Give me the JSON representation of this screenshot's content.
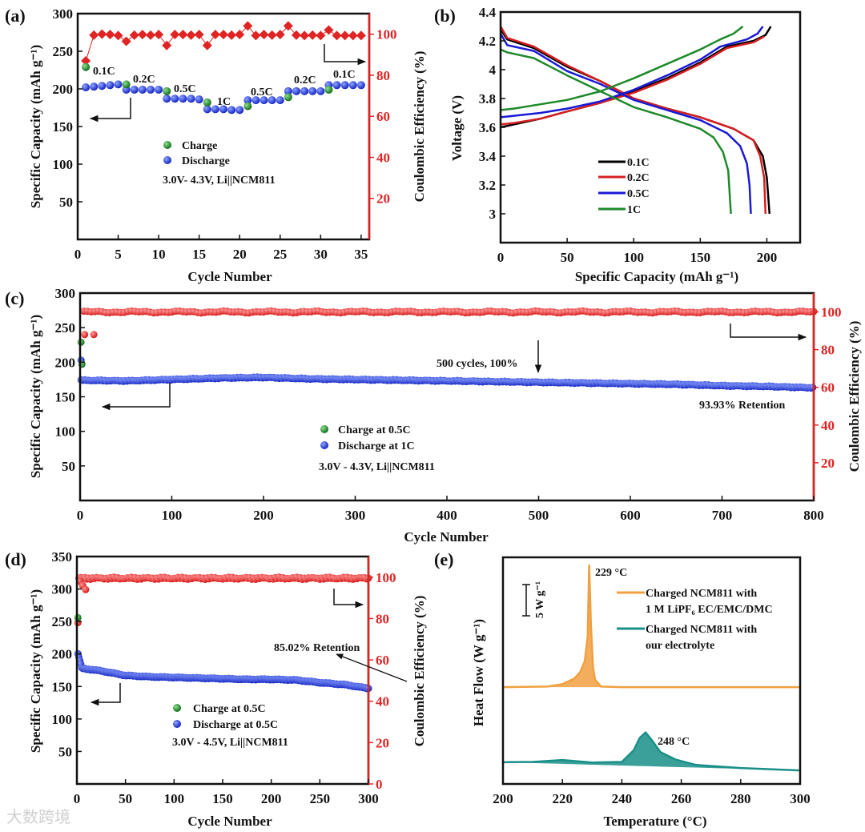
{
  "watermark": "大数跨境",
  "colors": {
    "charge": "#1f8a2a",
    "discharge": "#1a2fd0",
    "ce": "#e02424",
    "c01": "#000000",
    "c02": "#d62020",
    "c05": "#1a1ad6",
    "c1": "#1e8a2a",
    "orange": "#f0a040",
    "teal": "#1a8f88"
  },
  "chart_data": [
    {
      "panel": "(a)",
      "type": "scatter",
      "xlabel": "Cycle Number",
      "ylabel": "Specific Capacity (mAh g⁻¹)",
      "y2label": "Coulombic Efficiency (%)",
      "xlim": [
        0,
        36
      ],
      "ylim": [
        0,
        300
      ],
      "y2lim": [
        0,
        110
      ],
      "xticks": [
        0,
        5,
        10,
        15,
        20,
        25,
        30,
        35
      ],
      "yticks": [
        50,
        100,
        150,
        200,
        250,
        300
      ],
      "y2ticks": [
        20,
        40,
        60,
        80,
        100
      ],
      "legend": [
        "Charge",
        "Discharge"
      ],
      "condition": "3.0V- 4.3V, Li||NCM811",
      "rate_labels": [
        "0.1C",
        "0.2C",
        "0.5C",
        "1C",
        "0.5C",
        "0.2C",
        "0.1C"
      ],
      "charge": {
        "x": [
          1,
          6,
          11,
          16,
          21,
          26,
          31
        ],
        "y": [
          229,
          206,
          197,
          182,
          177,
          189,
          199
        ]
      },
      "discharge": {
        "x": [
          1,
          2,
          3,
          4,
          5,
          6,
          7,
          8,
          9,
          10,
          11,
          12,
          13,
          14,
          15,
          16,
          17,
          18,
          19,
          20,
          21,
          22,
          23,
          24,
          25,
          26,
          27,
          28,
          29,
          30,
          31,
          32,
          33,
          34,
          35
        ],
        "y": [
          202,
          203,
          204,
          205,
          206,
          199,
          199,
          199,
          199,
          199,
          187,
          187,
          187,
          187,
          186,
          173,
          173,
          173,
          172,
          172,
          185,
          185,
          185,
          185,
          185,
          197,
          197,
          197,
          197,
          197,
          205,
          205,
          205,
          205,
          205
        ]
      },
      "coulombic_efficiency": {
        "x": [
          1,
          2,
          3,
          4,
          5,
          6,
          7,
          8,
          9,
          10,
          11,
          12,
          13,
          14,
          15,
          16,
          17,
          18,
          19,
          20,
          21,
          22,
          23,
          24,
          25,
          26,
          27,
          28,
          29,
          30,
          31,
          32,
          33,
          34,
          35
        ],
        "y": [
          87,
          99.5,
          100,
          99.8,
          99.3,
          96.5,
          99.5,
          99.8,
          99.5,
          99.8,
          94.5,
          99.8,
          99.8,
          99.5,
          99.8,
          94.5,
          99.8,
          99.8,
          99.5,
          99.8,
          104,
          99.3,
          99.8,
          99.5,
          99.8,
          104,
          99.5,
          99.3,
          99.5,
          99.3,
          102,
          99.3,
          99.3,
          99.3,
          99.3
        ]
      }
    },
    {
      "panel": "(b)",
      "type": "line",
      "xlabel": "Specific Capacity (mAh g⁻¹)",
      "ylabel": "Voltage (V)",
      "xlim": [
        0,
        225
      ],
      "ylim": [
        2.8,
        4.4
      ],
      "xticks": [
        0,
        50,
        100,
        150,
        200
      ],
      "yticks": [
        3.0,
        3.2,
        3.4,
        3.6,
        3.8,
        4.0,
        4.2,
        4.4
      ],
      "legend_placement": "center-bottom",
      "series": [
        {
          "name": "0.1C",
          "color_key": "c01",
          "charge": [
            [
              0,
              3.6
            ],
            [
              10,
              3.62
            ],
            [
              30,
              3.66
            ],
            [
              50,
              3.71
            ],
            [
              75,
              3.77
            ],
            [
              100,
              3.85
            ],
            [
              125,
              3.94
            ],
            [
              150,
              4.05
            ],
            [
              170,
              4.16
            ],
            [
              190,
              4.2
            ],
            [
              199,
              4.24
            ],
            [
              203,
              4.3
            ]
          ],
          "discharge": [
            [
              0,
              4.28
            ],
            [
              5,
              4.21
            ],
            [
              25,
              4.15
            ],
            [
              50,
              4.02
            ],
            [
              75,
              3.92
            ],
            [
              100,
              3.8
            ],
            [
              125,
              3.73
            ],
            [
              150,
              3.67
            ],
            [
              175,
              3.59
            ],
            [
              190,
              3.51
            ],
            [
              197,
              3.4
            ],
            [
              200,
              3.25
            ],
            [
              202,
              3.0
            ]
          ]
        },
        {
          "name": "0.2C",
          "color_key": "c02",
          "charge": [
            [
              0,
              3.62
            ],
            [
              10,
              3.63
            ],
            [
              30,
              3.66
            ],
            [
              50,
              3.71
            ],
            [
              75,
              3.77
            ],
            [
              100,
              3.84
            ],
            [
              125,
              3.93
            ],
            [
              150,
              4.04
            ],
            [
              170,
              4.15
            ],
            [
              190,
              4.19
            ],
            [
              198,
              4.23
            ]
          ],
          "discharge": [
            [
              0,
              4.3
            ],
            [
              5,
              4.22
            ],
            [
              25,
              4.16
            ],
            [
              50,
              4.03
            ],
            [
              75,
              3.92
            ],
            [
              100,
              3.8
            ],
            [
              125,
              3.73
            ],
            [
              150,
              3.67
            ],
            [
              175,
              3.59
            ],
            [
              190,
              3.51
            ],
            [
              195,
              3.4
            ],
            [
              198,
              3.25
            ],
            [
              199,
              3.0
            ]
          ]
        },
        {
          "name": "0.5C",
          "color_key": "c05",
          "charge": [
            [
              0,
              3.67
            ],
            [
              10,
              3.68
            ],
            [
              30,
              3.7
            ],
            [
              50,
              3.73
            ],
            [
              75,
              3.78
            ],
            [
              100,
              3.86
            ],
            [
              125,
              3.96
            ],
            [
              150,
              4.07
            ],
            [
              165,
              4.16
            ],
            [
              185,
              4.21
            ],
            [
              193,
              4.25
            ],
            [
              197,
              4.3
            ]
          ],
          "discharge": [
            [
              0,
              4.25
            ],
            [
              5,
              4.17
            ],
            [
              25,
              4.13
            ],
            [
              50,
              3.99
            ],
            [
              75,
              3.9
            ],
            [
              100,
              3.79
            ],
            [
              125,
              3.72
            ],
            [
              150,
              3.65
            ],
            [
              170,
              3.56
            ],
            [
              180,
              3.47
            ],
            [
              185,
              3.35
            ],
            [
              187,
              3.2
            ],
            [
              188,
              3.0
            ]
          ]
        },
        {
          "name": "1C",
          "color_key": "c1",
          "charge": [
            [
              0,
              3.72
            ],
            [
              10,
              3.73
            ],
            [
              30,
              3.76
            ],
            [
              50,
              3.79
            ],
            [
              75,
              3.85
            ],
            [
              100,
              3.94
            ],
            [
              125,
              4.04
            ],
            [
              150,
              4.14
            ],
            [
              165,
              4.21
            ],
            [
              175,
              4.25
            ],
            [
              182,
              4.3
            ]
          ],
          "discharge": [
            [
              0,
              4.14
            ],
            [
              5,
              4.12
            ],
            [
              25,
              4.08
            ],
            [
              50,
              3.96
            ],
            [
              75,
              3.85
            ],
            [
              100,
              3.74
            ],
            [
              125,
              3.67
            ],
            [
              150,
              3.59
            ],
            [
              160,
              3.53
            ],
            [
              167,
              3.43
            ],
            [
              171,
              3.3
            ],
            [
              173,
              3.0
            ]
          ]
        }
      ]
    },
    {
      "panel": "(c)",
      "type": "scatter",
      "xlabel": "Cycle Number",
      "ylabel": "Specific Capacity (mAh g⁻¹)",
      "y2label": "Coulombic Efficiency (%)",
      "xlim": [
        0,
        800
      ],
      "ylim": [
        0,
        300
      ],
      "y2lim": [
        0,
        110
      ],
      "xticks": [
        0,
        100,
        200,
        300,
        400,
        500,
        600,
        700,
        800
      ],
      "yticks": [
        50,
        100,
        150,
        200,
        250,
        300
      ],
      "y2ticks": [
        20,
        40,
        60,
        80,
        100
      ],
      "legend": [
        "Charge at 0.5C",
        "Discharge at 1C"
      ],
      "condition": "3.0V - 4.3V, Li||NCM811",
      "annotation": "500 cycles, 100%",
      "retention": "93.93% Retention",
      "charge": {
        "x": [
          1,
          2
        ],
        "y": [
          229,
          197
        ]
      },
      "discharge_initial": {
        "x": [
          1
        ],
        "y": [
          203
        ]
      },
      "discharge_anchors": {
        "x": [
          0,
          50,
          100,
          150,
          200,
          250,
          300,
          350,
          400,
          450,
          500,
          550,
          600,
          650,
          700,
          750,
          800
        ],
        "y": [
          174,
          173,
          175,
          177,
          178,
          176,
          175,
          174,
          173,
          172,
          171,
          170,
          169,
          168,
          166,
          165,
          163
        ]
      },
      "ce_initial": {
        "x": [
          5,
          15
        ],
        "y": [
          88,
          88
        ]
      },
      "ce_level": 100
    },
    {
      "panel": "(d)",
      "type": "scatter",
      "xlabel": "Cycle Number",
      "ylabel": "Specific Capacity (mAh g⁻¹)",
      "y2label": "Coulombic Efficiency (%)",
      "xlim": [
        0,
        300
      ],
      "ylim": [
        0,
        350
      ],
      "y2lim": [
        0,
        110
      ],
      "xticks": [
        0,
        50,
        100,
        150,
        200,
        250,
        300
      ],
      "yticks": [
        50,
        100,
        150,
        200,
        250,
        300,
        350
      ],
      "y2ticks": [
        0,
        20,
        40,
        60,
        80,
        100
      ],
      "legend": [
        "Charge at 0.5C",
        "Discharge at 0.5C"
      ],
      "condition": "3.0V - 4.5V, Li||NCM811",
      "retention": "85.02% Retention",
      "charge": {
        "x": [
          1
        ],
        "y": [
          256
        ]
      },
      "discharge_anchors": {
        "x": [
          1,
          3,
          5,
          25,
          50,
          75,
          100,
          125,
          150,
          175,
          200,
          225,
          250,
          275,
          300
        ],
        "y": [
          200,
          190,
          178,
          174,
          167,
          165,
          164,
          163,
          162,
          161,
          161,
          160,
          156,
          153,
          147
        ]
      },
      "ce_initial": {
        "x": [
          1,
          3,
          6,
          9
        ],
        "y": [
          78,
          98,
          96,
          94
        ]
      },
      "ce_level": 99.5
    },
    {
      "panel": "(e)",
      "type": "area",
      "xlabel": "Temperature (°C)",
      "ylabel": "Heat Flow (W g⁻¹)",
      "xlim": [
        200,
        300
      ],
      "xticks": [
        200,
        220,
        240,
        260,
        280,
        300
      ],
      "ylim": [
        0,
        37
      ],
      "scale_bar": "5 W g⁻¹",
      "series": [
        {
          "name": "Charged NCM811  with",
          "name_line2": "1 M LiPF₆ EC/EMC/DMC",
          "color_key": "orange",
          "peak_label": "229 °C",
          "points": [
            [
              200,
              15.8
            ],
            [
              215,
              15.9
            ],
            [
              220,
              16.3
            ],
            [
              224,
              17.2
            ],
            [
              226,
              18.3
            ],
            [
              227.5,
              20
            ],
            [
              228.5,
              24
            ],
            [
              229,
              35.8
            ],
            [
              229.6,
              26
            ],
            [
              230.3,
              19
            ],
            [
              231,
              17
            ],
            [
              233,
              15.9
            ],
            [
              240,
              15.8
            ],
            [
              300,
              15.8
            ]
          ]
        },
        {
          "name": "Charged NCM811 with",
          "name_line2": "our electrolyte",
          "color_key": "teal",
          "peak_label": "248 °C",
          "points": [
            [
              200,
              3.55
            ],
            [
              210,
              3.6
            ],
            [
              220,
              3.9
            ],
            [
              230,
              3.5
            ],
            [
              240,
              3.6
            ],
            [
              244,
              5.5
            ],
            [
              246,
              7.5
            ],
            [
              248,
              8.4
            ],
            [
              250,
              7.2
            ],
            [
              253,
              5.2
            ],
            [
              258,
              4
            ],
            [
              265,
              3.1
            ],
            [
              280,
              2.6
            ],
            [
              300,
              2.2
            ]
          ]
        }
      ]
    }
  ]
}
